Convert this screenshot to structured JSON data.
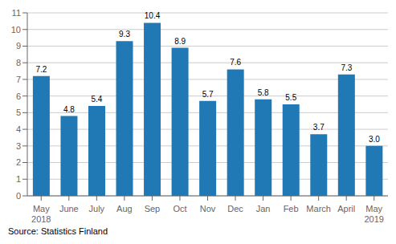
{
  "chart_data": {
    "type": "bar",
    "categories": [
      "May\n2018",
      "June",
      "July",
      "Aug",
      "Sep",
      "Oct",
      "Nov",
      "Dec",
      "Jan",
      "Feb",
      "March",
      "April",
      "May\n2019"
    ],
    "values": [
      7.2,
      4.8,
      5.4,
      9.3,
      10.4,
      8.9,
      5.7,
      7.6,
      5.8,
      5.5,
      3.7,
      7.3,
      3.0
    ],
    "value_labels": [
      "7.2",
      "4.8",
      "5.4",
      "9.3",
      "10.4",
      "8.9",
      "5.7",
      "7.6",
      "5.8",
      "5.5",
      "3.7",
      "7.3",
      "3.0"
    ],
    "data_labels": true,
    "color": "#2079b4",
    "ylim": [
      0,
      11
    ],
    "yticks": [
      0,
      1,
      2,
      3,
      4,
      5,
      6,
      7,
      8,
      9,
      10,
      11
    ],
    "grid": true,
    "annotations": [
      "Source: Statistics Finland"
    ]
  }
}
